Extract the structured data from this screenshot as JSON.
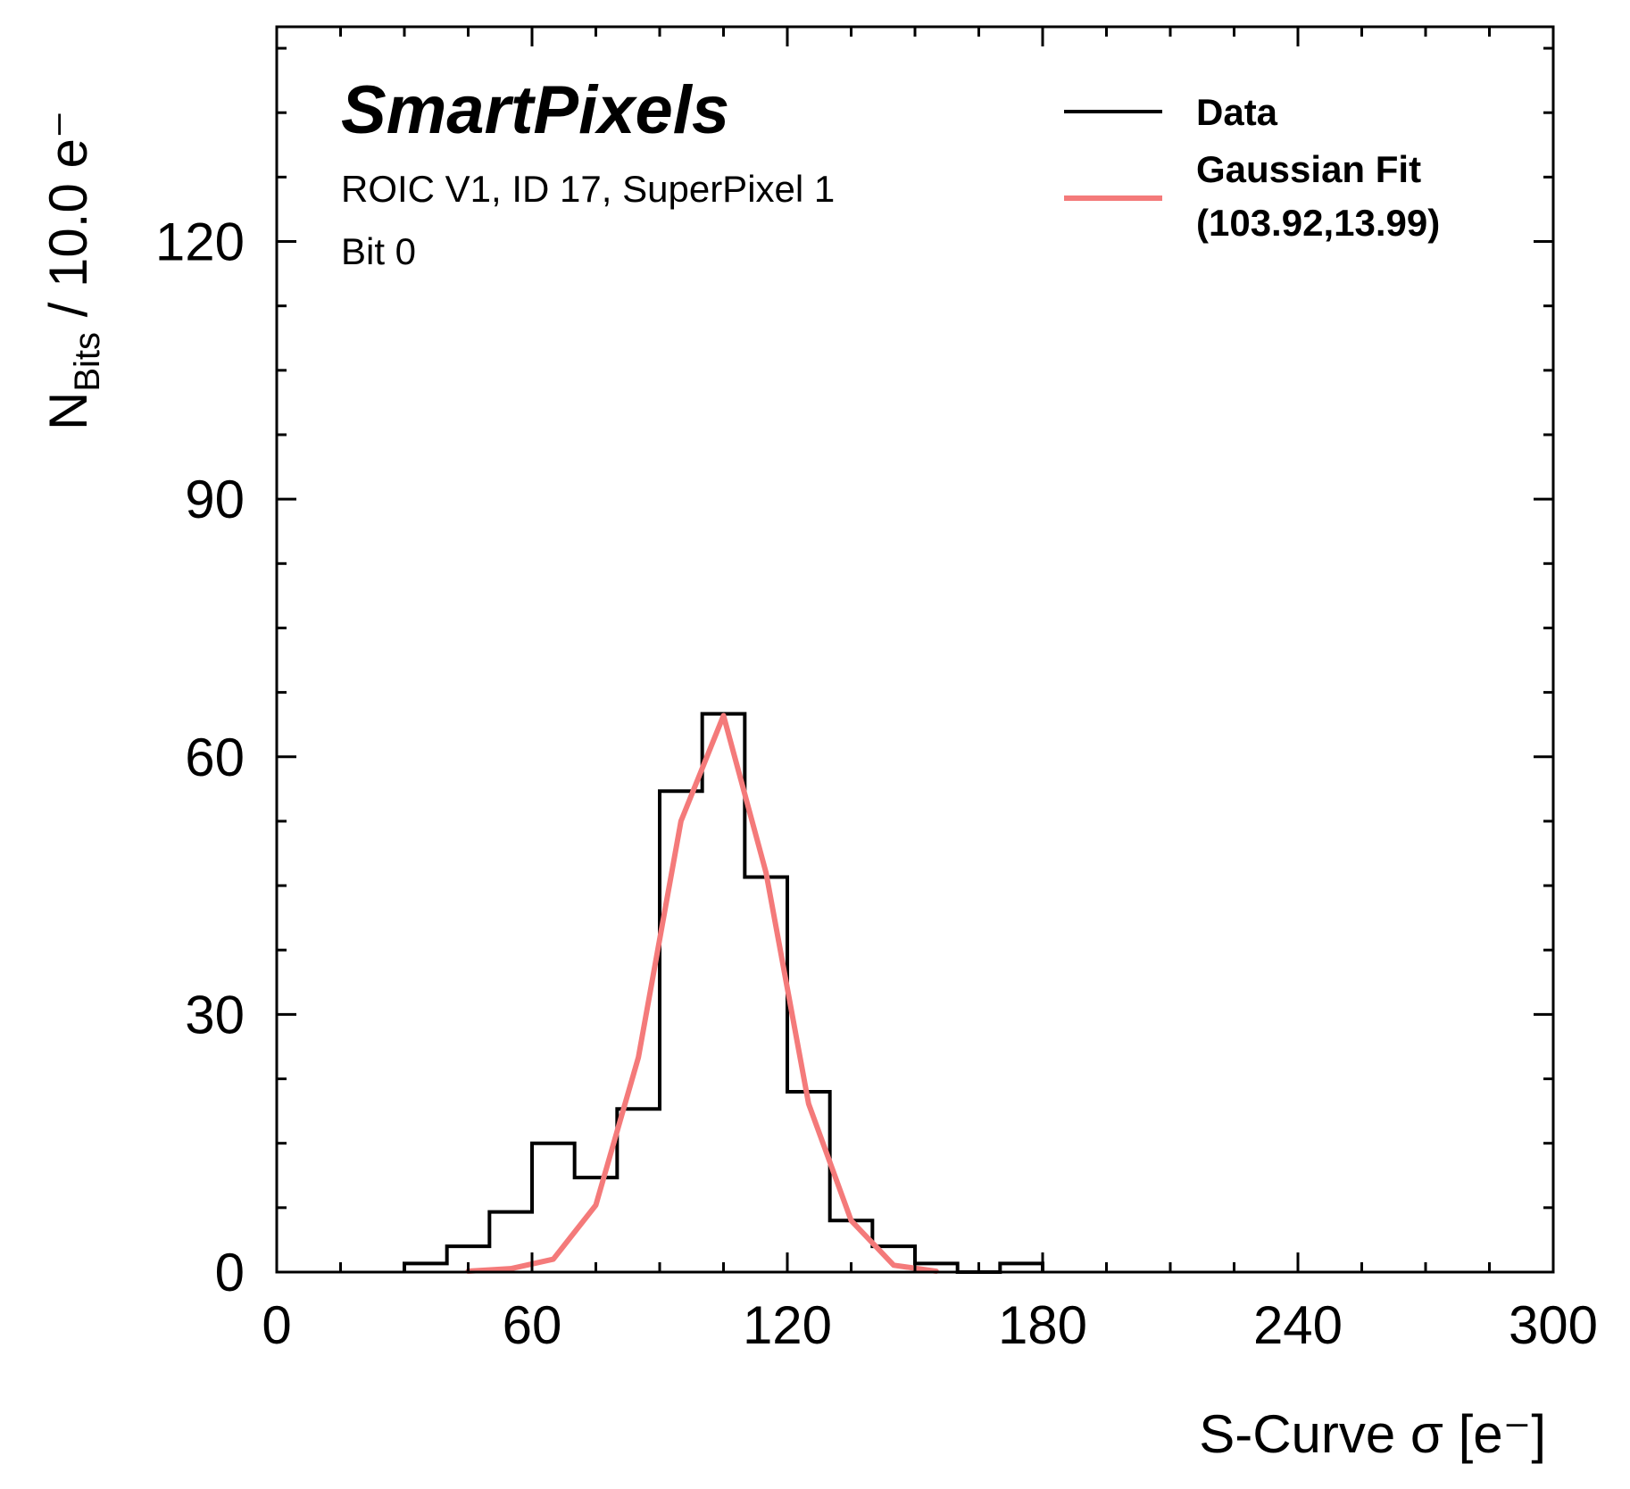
{
  "chart_data": {
    "type": "histogram",
    "brand": "SmartPixels",
    "subtitle_lines": [
      "ROIC V1, ID 17, SuperPixel 1",
      "Bit 0"
    ],
    "xlabel": "S-Curve σ [e⁻]",
    "ylabel_main": "N",
    "ylabel_sub": "Bits",
    "ylabel_rest": " / 10.0 e⁻",
    "xlim": [
      0,
      300
    ],
    "ylim": [
      0,
      145
    ],
    "xticks": [
      0,
      60,
      120,
      180,
      240,
      300
    ],
    "yticks": [
      0,
      30,
      60,
      90,
      120
    ],
    "x_minor_step": 15,
    "y_minor_step": 7.5,
    "series": [
      {
        "name": "Data",
        "kind": "step",
        "color": "#000000",
        "bin_edges": [
          30,
          40,
          50,
          60,
          70,
          80,
          90,
          100,
          110,
          120,
          130,
          140,
          150,
          160,
          170,
          180
        ],
        "counts": [
          1,
          3,
          7,
          15,
          11,
          19,
          56,
          65,
          46,
          21,
          6,
          3,
          1,
          0,
          1
        ]
      },
      {
        "name": "Gaussian Fit",
        "kind": "line",
        "color": "#f47a7a",
        "x": [
          45,
          55,
          65,
          75,
          85,
          95,
          105,
          115,
          125,
          135,
          145,
          155
        ],
        "y": [
          0.1,
          0.4,
          1.5,
          7.8,
          25.0,
          52.5,
          64.8,
          46.5,
          19.6,
          6.0,
          0.8,
          0.1
        ]
      }
    ],
    "legend": {
      "position": "top-right",
      "entries": [
        {
          "label_lines": [
            "Data"
          ],
          "color": "#000000"
        },
        {
          "label_lines": [
            "Gaussian Fit",
            "(103.92,13.99)"
          ],
          "color": "#f47a7a"
        }
      ]
    }
  }
}
